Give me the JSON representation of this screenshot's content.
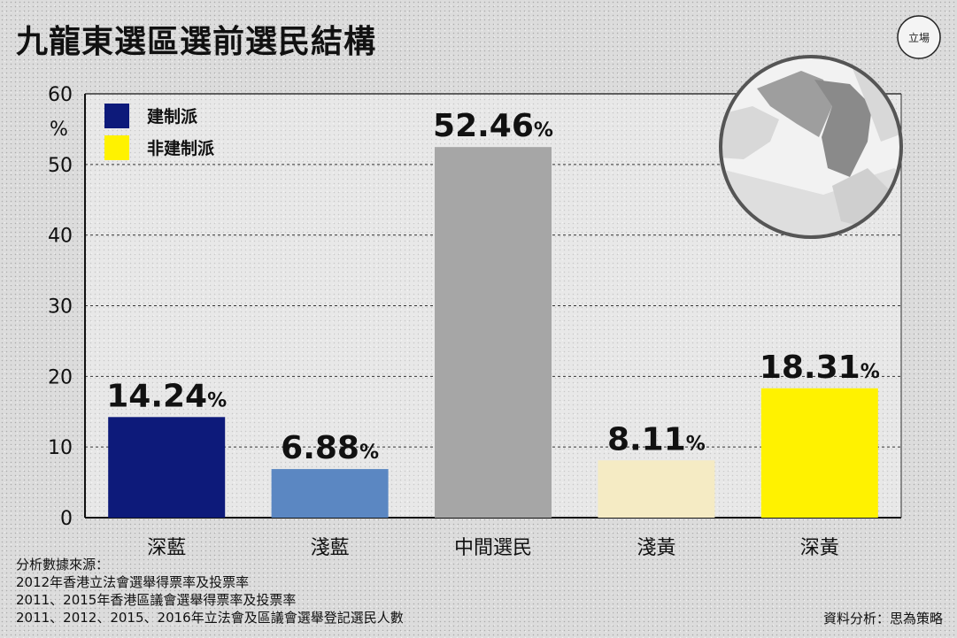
{
  "title": "九龍東選區選前選民結構",
  "chart_data": {
    "type": "bar",
    "categories": [
      "深藍",
      "淺藍",
      "中間選民",
      "淺黃",
      "深黃"
    ],
    "values": [
      14.24,
      6.88,
      52.46,
      8.11,
      18.31
    ],
    "value_labels": [
      "14.24",
      "6.88",
      "52.46",
      "8.11",
      "18.31"
    ],
    "value_suffix": "%",
    "colors": [
      "#0d1a7a",
      "#5b87c2",
      "#a6a6a6",
      "#f5ebc4",
      "#fff200"
    ],
    "ylabel": "%",
    "ylim": [
      0,
      60
    ],
    "yticks": [
      0,
      10,
      20,
      30,
      40,
      50,
      60
    ],
    "grid": true,
    "legend": {
      "placement": "top-left",
      "entries": [
        {
          "label": "建制派",
          "color": "#0d1a7a"
        },
        {
          "label": "非建制派",
          "color": "#fff200"
        }
      ]
    }
  },
  "footer": {
    "source_heading": "分析數據來源：",
    "sources": [
      "2012年香港立法會選舉得票率及投票率",
      "2011、2015年香港區議會選舉得票率及投票率",
      "2011、2012、2015、2016年立法會及區議會選舉登記選民人數"
    ],
    "credit": "資料分析：思為策略"
  },
  "logo_text": "立場"
}
